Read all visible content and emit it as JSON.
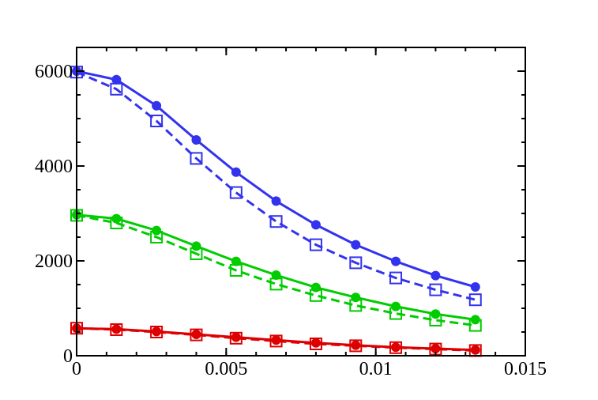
{
  "chart_data": {
    "type": "line",
    "title": "",
    "xlabel": "",
    "ylabel": "",
    "xlim": [
      0,
      0.015
    ],
    "ylim": [
      0,
      6500
    ],
    "x_ticks": [
      {
        "value": 0,
        "label": "0"
      },
      {
        "value": 0.005,
        "label": "0.005"
      },
      {
        "value": 0.01,
        "label": "0.01"
      },
      {
        "value": 0.015,
        "label": "0.015"
      }
    ],
    "y_ticks": [
      {
        "value": 0,
        "label": "0"
      },
      {
        "value": 2000,
        "label": "2000"
      },
      {
        "value": 4000,
        "label": "4000"
      },
      {
        "value": 6000,
        "label": "6000"
      }
    ],
    "x_minor_step": 0.001,
    "y_minor_step": 500,
    "grid": false,
    "legend": "none",
    "x": [
      0,
      0.00133,
      0.00267,
      0.004,
      0.00533,
      0.00667,
      0.008,
      0.00933,
      0.01067,
      0.012,
      0.01333
    ],
    "series": [
      {
        "color": "#3333ee",
        "line": "solid",
        "marker": "filled-circle",
        "values": [
          6000,
          5820,
          5270,
          4550,
          3870,
          3260,
          2760,
          2340,
          1990,
          1690,
          1450
        ]
      },
      {
        "color": "#3333ee",
        "line": "dashed",
        "marker": "open-square",
        "values": [
          5980,
          5620,
          4950,
          4160,
          3440,
          2830,
          2340,
          1960,
          1640,
          1390,
          1180
        ]
      },
      {
        "color": "#00cc00",
        "line": "solid",
        "marker": "filled-circle",
        "values": [
          2970,
          2890,
          2640,
          2310,
          1990,
          1700,
          1440,
          1230,
          1040,
          880,
          760
        ]
      },
      {
        "color": "#00cc00",
        "line": "dashed",
        "marker": "open-square",
        "values": [
          2960,
          2800,
          2500,
          2150,
          1800,
          1510,
          1270,
          1060,
          890,
          750,
          640
        ]
      },
      {
        "color": "#dd0000",
        "line": "solid",
        "marker": "filled-circle",
        "values": [
          580,
          560,
          510,
          450,
          390,
          330,
          270,
          220,
          180,
          150,
          120
        ]
      },
      {
        "color": "#dd0000",
        "line": "dashed",
        "marker": "open-square",
        "values": [
          580,
          550,
          500,
          440,
          370,
          310,
          250,
          210,
          170,
          140,
          110
        ]
      }
    ]
  }
}
